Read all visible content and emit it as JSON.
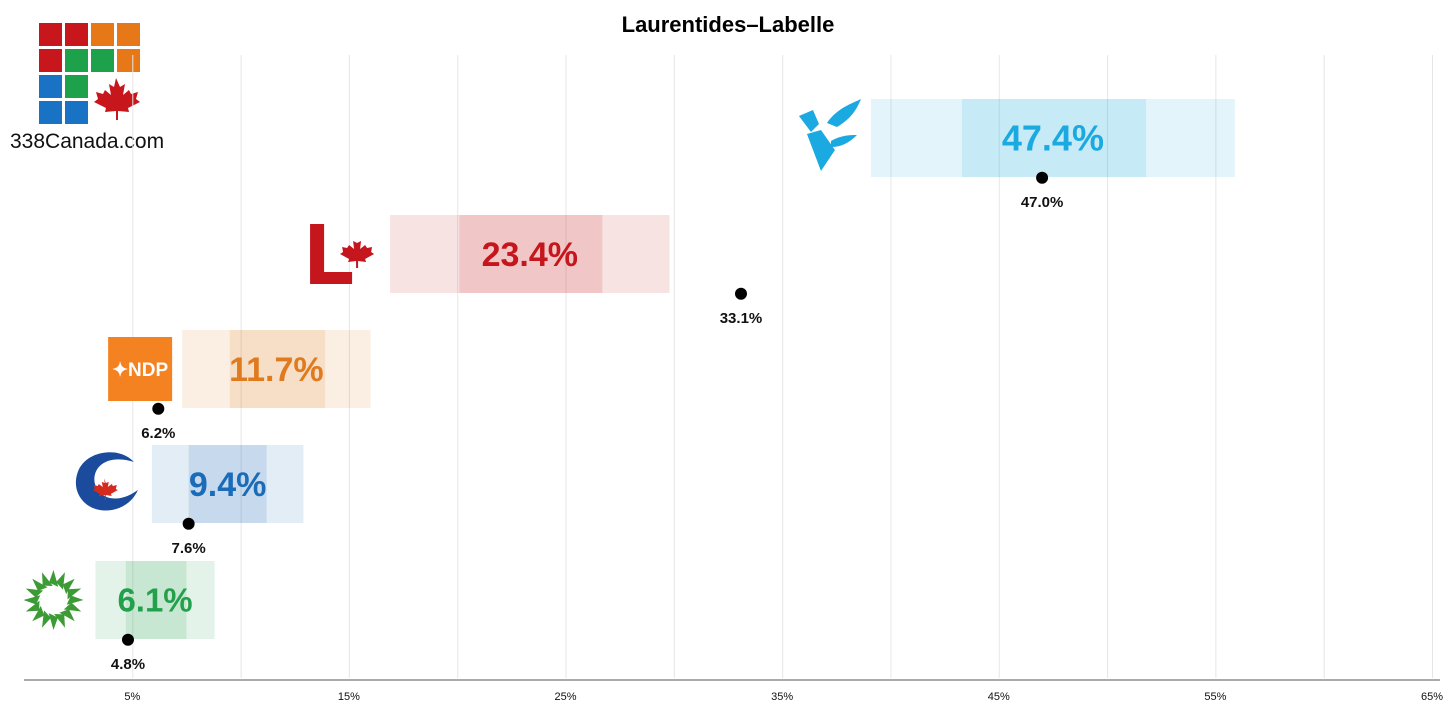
{
  "chart_data": {
    "type": "bar",
    "title": "Laurentides–Labelle",
    "xlim": [
      0,
      65
    ],
    "x_tick_labels": [
      "5%",
      "15%",
      "25%",
      "35%",
      "45%",
      "55%",
      "65%"
    ],
    "x_tick_values": [
      5,
      15,
      25,
      35,
      45,
      55,
      65
    ],
    "grid": true,
    "series": [
      {
        "name": "BQ",
        "logo": "bq-logo-icon",
        "color": "#1ba9e1",
        "projection": 47.4,
        "projection_label": "47.4%",
        "range_inner": [
          43.3,
          51.8
        ],
        "range_outer": [
          39.1,
          55.9
        ],
        "previous": 47.0,
        "previous_label": "47.0%"
      },
      {
        "name": "LPC",
        "logo": "liberal-logo-icon",
        "color": "#c4161c",
        "projection": 23.4,
        "projection_label": "23.4%",
        "range_inner": [
          20.1,
          26.7
        ],
        "range_outer": [
          16.9,
          29.8
        ],
        "previous": 33.1,
        "previous_label": "33.1%"
      },
      {
        "name": "NDP",
        "logo": "ndp-logo-icon",
        "color": "#e07a1f",
        "projection": 11.7,
        "projection_label": "11.7%",
        "range_inner": [
          9.5,
          13.9
        ],
        "range_outer": [
          7.3,
          16.0
        ],
        "previous": 6.2,
        "previous_label": "6.2%"
      },
      {
        "name": "CPC",
        "logo": "conservative-logo-icon",
        "color": "#1a6bb8",
        "projection": 9.4,
        "projection_label": "9.4%",
        "range_inner": [
          7.6,
          11.2
        ],
        "range_outer": [
          5.9,
          12.9
        ],
        "previous": 7.6,
        "previous_label": "7.6%"
      },
      {
        "name": "GPC",
        "logo": "green-logo-icon",
        "color": "#22a04b",
        "projection": 6.1,
        "projection_label": "6.1%",
        "range_inner": [
          4.7,
          7.5
        ],
        "range_outer": [
          3.3,
          8.8
        ],
        "previous": 4.8,
        "previous_label": "4.8%"
      }
    ],
    "brand_colors": [
      "#c8161d",
      "#c8161d",
      "#e77817",
      "#e77817",
      "#c8161d",
      "#1ea14b",
      "#1ea14b",
      "#e77817",
      "#1a72c5",
      "#1ea14b",
      "#1a72c5",
      "#1a72c5"
    ]
  },
  "brand": {
    "text": "338Canada.com",
    "icon": "maple-leaf-icon"
  }
}
